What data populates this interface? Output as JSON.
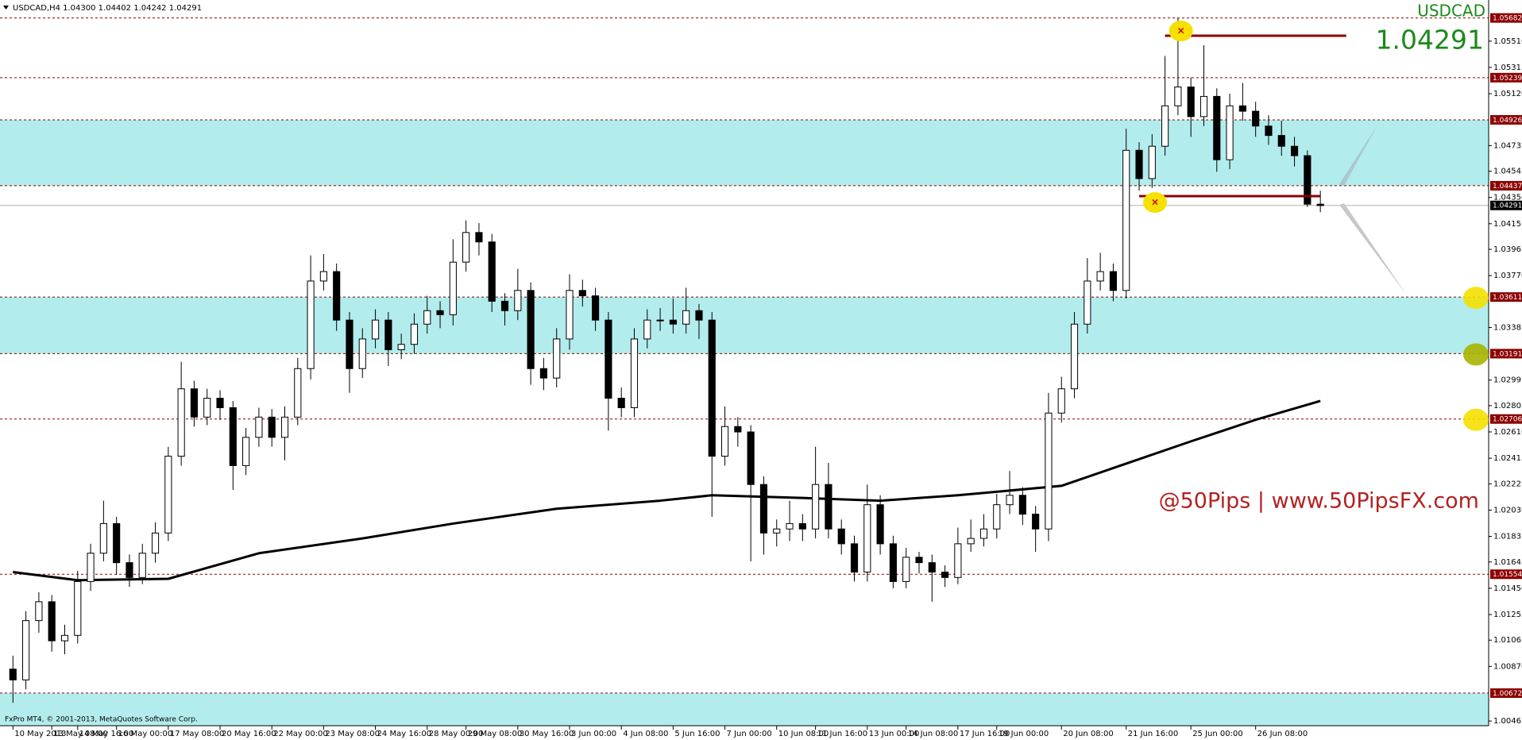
{
  "chart_data": {
    "type": "candlestick",
    "header": "USDCAD,H4 1.04300 1.04402 1.04242 1.04291",
    "symbol": "USDCAD",
    "last_price": {
      "value": 1.04291
    },
    "watermark": "@50Pips | www.50PipsFX.com",
    "copyright": "FxPro MT4, © 2001-2013, MetaQuotes Software Corp.",
    "up_color": "#ffffff",
    "down_color": "#000000",
    "level_color": "#8b0000",
    "zone_color": "#b3ecec",
    "xlim": [
      -1,
      114
    ],
    "ylim": [
      1.0043,
      1.0578
    ],
    "yticks": [
      {
        "value": 1.0551,
        "label": "1.05510"
      },
      1.05315,
      {
        "value": 1.0512,
        "label": "1.05120"
      },
      1.04735,
      1.04545,
      {
        "value": 1.0435,
        "label": "1.04350"
      },
      1.04155,
      1.03965,
      {
        "value": 1.0377,
        "label": "1.03770"
      },
      1.03385,
      1.02995,
      1.02805,
      {
        "value": 1.0261,
        "label": "1.02610"
      },
      1.02415,
      1.02225,
      {
        "value": 1.0203,
        "label": "1.02030"
      },
      1.01835,
      1.01645,
      {
        "value": 1.0145,
        "label": "1.01450"
      },
      1.01255,
      1.01065,
      {
        "value": 1.0087,
        "label": "1.00870"
      },
      1.00465
    ],
    "xticks": [
      {
        "value": 0,
        "label": "10 May 2013"
      },
      {
        "value": 3,
        "label": "13 May 08:00"
      },
      {
        "value": 5,
        "label": "14 May 16:00"
      },
      {
        "value": 8,
        "label": "16 May 00:00"
      },
      {
        "value": 12,
        "label": "17 May 08:00"
      },
      {
        "value": 16,
        "label": "20 May 16:00"
      },
      {
        "value": 20,
        "label": "22 May 00:00"
      },
      {
        "value": 24,
        "label": "23 May 08:00"
      },
      {
        "value": 28,
        "label": "24 May 16:00"
      },
      {
        "value": 32,
        "label": "28 May 00:00"
      },
      {
        "value": 35,
        "label": "29 May 08:00"
      },
      {
        "value": 39,
        "label": "30 May 16:00"
      },
      {
        "value": 43,
        "label": "3 Jun 00:00"
      },
      {
        "value": 47,
        "label": "4 Jun 08:00"
      },
      {
        "value": 51,
        "label": "5 Jun 16:00"
      },
      {
        "value": 55,
        "label": "7 Jun 00:00"
      },
      {
        "value": 59,
        "label": "10 Jun 08:00"
      },
      {
        "value": 62,
        "label": "11 Jun 16:00"
      },
      {
        "value": 66,
        "label": "13 Jun 00:00"
      },
      {
        "value": 69,
        "label": "14 Jun 08:00"
      },
      {
        "value": 73,
        "label": "17 Jun 16:00"
      },
      {
        "value": 76,
        "label": "19 Jun 00:00"
      },
      {
        "value": 81,
        "label": "20 Jun 08:00"
      },
      {
        "value": 86,
        "label": "21 Jun 16:00"
      },
      {
        "value": 91,
        "label": "25 Jun 00:00"
      },
      {
        "value": 96,
        "label": "26 Jun 08:00"
      }
    ],
    "zones": [
      [
        1.04437,
        1.04926
      ],
      [
        1.03191,
        1.03611
      ],
      [
        1.0043,
        1.00672
      ]
    ],
    "levels": [
      {
        "value": 1.05682
      },
      {
        "value": 1.05239
      },
      {
        "value": 1.04926
      },
      {
        "value": 1.04437
      },
      {
        "value": 1.03611,
        "marker": "#f5e000"
      },
      {
        "value": 1.03191,
        "marker": "#a8b400"
      },
      {
        "value": 1.02706,
        "marker": "#f5e000"
      },
      {
        "value": 1.01554
      },
      {
        "value": 1.00672
      }
    ],
    "hlines": [
      {
        "x": [
          89,
          103
        ],
        "value": 1.0555
      },
      {
        "x": [
          87,
          101
        ],
        "value": 1.0436
      }
    ],
    "ma": {
      "color": "#000000",
      "x": [
        0,
        5,
        12,
        19,
        27,
        34,
        42,
        50,
        54,
        61,
        67,
        73,
        81,
        91,
        96,
        101
      ],
      "values": [
        1.0157,
        1.0151,
        1.0152,
        1.0171,
        1.0182,
        1.0193,
        1.0204,
        1.021,
        1.0214,
        1.0212,
        1.021,
        1.0214,
        1.0221,
        1.0254,
        1.027,
        1.0284
      ]
    },
    "ohlc": [
      [
        1.0085,
        1.0095,
        1.006,
        1.0077
      ],
      [
        1.0077,
        1.0128,
        1.007,
        1.0121
      ],
      [
        1.0121,
        1.0142,
        1.0112,
        1.0135
      ],
      [
        1.0135,
        1.014,
        1.0098,
        1.0106
      ],
      [
        1.0106,
        1.0118,
        1.0096,
        1.011
      ],
      [
        1.011,
        1.0158,
        1.0104,
        1.015
      ],
      [
        1.015,
        1.0178,
        1.0143,
        1.0171
      ],
      [
        1.0171,
        1.021,
        1.0165,
        1.0193
      ],
      [
        1.0193,
        1.0198,
        1.0155,
        1.0164
      ],
      [
        1.0164,
        1.017,
        1.0146,
        1.0153
      ],
      [
        1.0153,
        1.0178,
        1.0148,
        1.0171
      ],
      [
        1.0171,
        1.0194,
        1.0164,
        1.0186
      ],
      [
        1.0186,
        1.025,
        1.018,
        1.0243
      ],
      [
        1.0243,
        1.0313,
        1.0236,
        1.0293
      ],
      [
        1.0293,
        1.0299,
        1.0265,
        1.0272
      ],
      [
        1.0272,
        1.0293,
        1.0266,
        1.0286
      ],
      [
        1.0286,
        1.0292,
        1.027,
        1.0279
      ],
      [
        1.0279,
        1.0284,
        1.0218,
        1.0236
      ],
      [
        1.0236,
        1.0264,
        1.0229,
        1.0257
      ],
      [
        1.0257,
        1.0279,
        1.025,
        1.0272
      ],
      [
        1.0272,
        1.0278,
        1.025,
        1.0257
      ],
      [
        1.0257,
        1.028,
        1.024,
        1.0272
      ],
      [
        1.0272,
        1.0316,
        1.0266,
        1.0308
      ],
      [
        1.0308,
        1.0392,
        1.03,
        1.0373
      ],
      [
        1.0373,
        1.0393,
        1.0366,
        1.038
      ],
      [
        1.038,
        1.0386,
        1.0336,
        1.0344
      ],
      [
        1.0344,
        1.035,
        1.029,
        1.0308
      ],
      [
        1.0308,
        1.0338,
        1.0301,
        1.033
      ],
      [
        1.033,
        1.0352,
        1.0323,
        1.0344
      ],
      [
        1.0344,
        1.035,
        1.031,
        1.0322
      ],
      [
        1.0322,
        1.0334,
        1.0315,
        1.0326
      ],
      [
        1.0326,
        1.0349,
        1.0319,
        1.0341
      ],
      [
        1.0341,
        1.0362,
        1.0334,
        1.0351
      ],
      [
        1.0351,
        1.0358,
        1.0338,
        1.0348
      ],
      [
        1.0348,
        1.0404,
        1.034,
        1.0387
      ],
      [
        1.0387,
        1.0418,
        1.038,
        1.0409
      ],
      [
        1.0409,
        1.0416,
        1.0392,
        1.0402
      ],
      [
        1.0402,
        1.0408,
        1.035,
        1.0358
      ],
      [
        1.0358,
        1.0364,
        1.034,
        1.0351
      ],
      [
        1.0351,
        1.0382,
        1.0344,
        1.0366
      ],
      [
        1.0366,
        1.0372,
        1.0296,
        1.0308
      ],
      [
        1.0308,
        1.0316,
        1.0292,
        1.0301
      ],
      [
        1.0301,
        1.0338,
        1.0294,
        1.033
      ],
      [
        1.033,
        1.0378,
        1.0322,
        1.0366
      ],
      [
        1.0366,
        1.0374,
        1.0354,
        1.0362
      ],
      [
        1.0362,
        1.0368,
        1.0336,
        1.0344
      ],
      [
        1.0344,
        1.035,
        1.0262,
        1.0286
      ],
      [
        1.0286,
        1.0294,
        1.0272,
        1.0279
      ],
      [
        1.0279,
        1.0338,
        1.0272,
        1.033
      ],
      [
        1.033,
        1.0352,
        1.0323,
        1.0344
      ],
      [
        1.0344,
        1.0353,
        1.0336,
        1.0344
      ],
      [
        1.0344,
        1.036,
        1.0334,
        1.0341
      ],
      [
        1.0341,
        1.0368,
        1.0334,
        1.0351
      ],
      [
        1.0351,
        1.0356,
        1.033,
        1.0344
      ],
      [
        1.0344,
        1.035,
        1.0198,
        1.0243
      ],
      [
        1.0243,
        1.028,
        1.0236,
        1.0265
      ],
      [
        1.0265,
        1.0272,
        1.025,
        1.0261
      ],
      [
        1.0261,
        1.0266,
        1.0165,
        1.0222
      ],
      [
        1.0222,
        1.0228,
        1.017,
        1.0186
      ],
      [
        1.0186,
        1.0196,
        1.0176,
        1.0189
      ],
      [
        1.0189,
        1.021,
        1.018,
        1.0193
      ],
      [
        1.0193,
        1.02,
        1.018,
        1.0189
      ],
      [
        1.0189,
        1.025,
        1.0182,
        1.0222
      ],
      [
        1.0222,
        1.0238,
        1.0182,
        1.0189
      ],
      [
        1.0189,
        1.0196,
        1.017,
        1.0178
      ],
      [
        1.0178,
        1.0184,
        1.015,
        1.0157
      ],
      [
        1.0157,
        1.0222,
        1.015,
        1.0207
      ],
      [
        1.0207,
        1.0214,
        1.017,
        1.0178
      ],
      [
        1.0178,
        1.0184,
        1.0145,
        1.015
      ],
      [
        1.015,
        1.0175,
        1.0145,
        1.0168
      ],
      [
        1.0168,
        1.0172,
        1.0156,
        1.0164
      ],
      [
        1.0164,
        1.017,
        1.0135,
        1.0157
      ],
      [
        1.0157,
        1.0162,
        1.0146,
        1.0153
      ],
      [
        1.0153,
        1.019,
        1.0148,
        1.0178
      ],
      [
        1.0178,
        1.0196,
        1.0172,
        1.0182
      ],
      [
        1.0182,
        1.02,
        1.0176,
        1.0189
      ],
      [
        1.0189,
        1.0215,
        1.0182,
        1.0207
      ],
      [
        1.0207,
        1.0232,
        1.02,
        1.0214
      ],
      [
        1.0214,
        1.022,
        1.0192,
        1.02
      ],
      [
        1.02,
        1.0206,
        1.0172,
        1.0189
      ],
      [
        1.0189,
        1.029,
        1.018,
        1.0275
      ],
      [
        1.0275,
        1.0302,
        1.0268,
        1.0293
      ],
      [
        1.0293,
        1.035,
        1.0286,
        1.0341
      ],
      [
        1.0341,
        1.039,
        1.0334,
        1.0373
      ],
      [
        1.0373,
        1.0394,
        1.0366,
        1.038
      ],
      [
        1.038,
        1.0386,
        1.0358,
        1.0366
      ],
      [
        1.0366,
        1.0486,
        1.036,
        1.047
      ],
      [
        1.047,
        1.0476,
        1.044,
        1.0449
      ],
      [
        1.0449,
        1.0482,
        1.0442,
        1.0473
      ],
      [
        1.0473,
        1.054,
        1.0466,
        1.0503
      ],
      [
        1.0503,
        1.0568,
        1.0496,
        1.0517
      ],
      [
        1.0517,
        1.0524,
        1.048,
        1.0495
      ],
      [
        1.0495,
        1.0548,
        1.0488,
        1.051
      ],
      [
        1.051,
        1.0516,
        1.0454,
        1.0463
      ],
      [
        1.0463,
        1.0512,
        1.0456,
        1.0503
      ],
      [
        1.0503,
        1.052,
        1.0492,
        1.0499
      ],
      [
        1.0499,
        1.0506,
        1.048,
        1.0488
      ],
      [
        1.0488,
        1.0496,
        1.0474,
        1.0481
      ],
      [
        1.0481,
        1.0492,
        1.0466,
        1.0473
      ],
      [
        1.0473,
        1.048,
        1.0458,
        1.0466
      ],
      [
        1.0466,
        1.047,
        1.0428,
        1.043
      ],
      [
        1.043,
        1.044,
        1.0424,
        1.0429
      ]
    ]
  }
}
